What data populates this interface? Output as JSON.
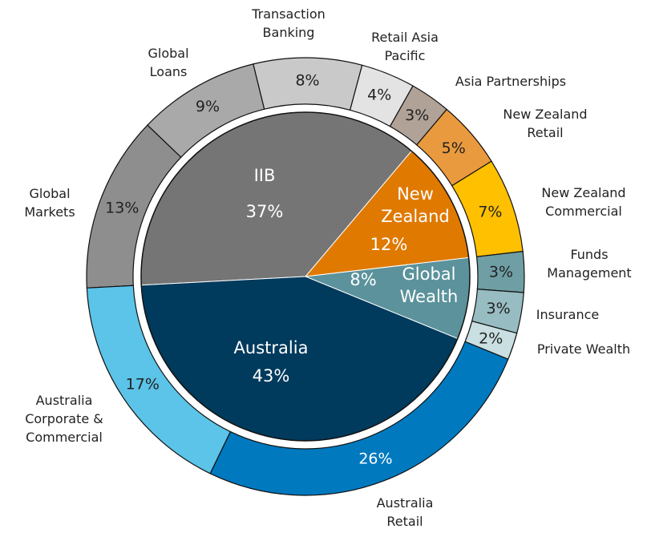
{
  "chart_data": [
    {
      "type": "pie",
      "categories": [
        "IIB",
        "New Zealand",
        "Global Wealth",
        "Australia"
      ],
      "values": [
        37,
        12,
        8,
        43
      ],
      "value_labels": [
        "37%",
        "12%",
        "8%",
        "43%"
      ],
      "colors": [
        "#757575",
        "#e07900",
        "#5b929b",
        "#003a5c"
      ]
    },
    {
      "type": "donut",
      "categories": [
        "Global Markets",
        "Global Loans",
        "Transaction Banking",
        "Retail Asia Pacific",
        "Asia Partnerships",
        "New Zealand Retail",
        "New Zealand Commercial",
        "Funds Management",
        "Insurance",
        "Private Wealth",
        "Australia Retail",
        "Australia Corporate & Commercial"
      ],
      "values": [
        13,
        9,
        8,
        4,
        3,
        5,
        7,
        3,
        3,
        2,
        26,
        17
      ],
      "value_labels": [
        "13%",
        "9%",
        "8%",
        "4%",
        "3%",
        "5%",
        "7%",
        "3%",
        "3%",
        "2%",
        "26%",
        "17%"
      ],
      "colors": [
        "#8e8e8e",
        "#a9a9a9",
        "#c9c9c9",
        "#e3e3e3",
        "#b0a297",
        "#ea9a3e",
        "#ffc000",
        "#6f9ea5",
        "#97bcc1",
        "#c9dfe1",
        "#0079bf",
        "#5bc4e8"
      ]
    }
  ]
}
